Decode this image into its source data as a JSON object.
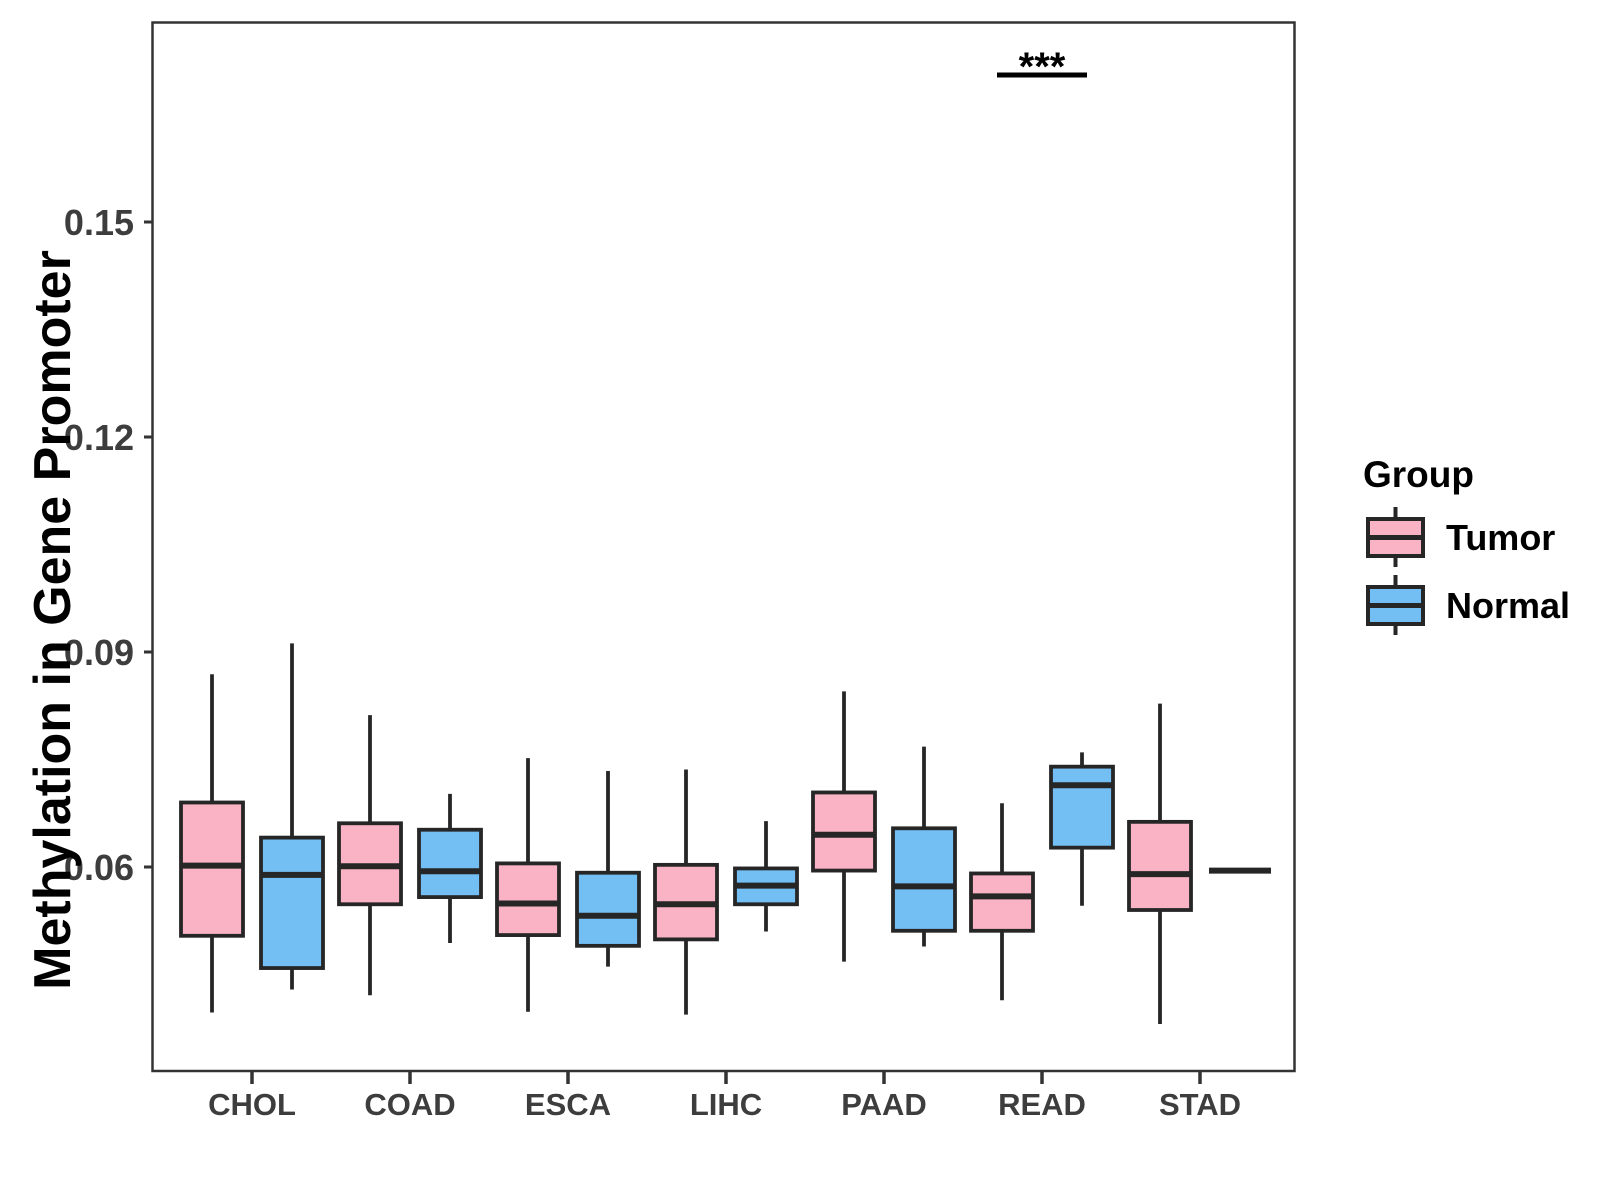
{
  "figure": {
    "background": "#ffffff"
  },
  "chart_data": {
    "type": "boxplot",
    "title": "",
    "xlabel": "",
    "ylabel": "Methylation in Gene Promoter",
    "categories": [
      "CHOL",
      "COAD",
      "ESCA",
      "LIHC",
      "PAAD",
      "READ",
      "STAD"
    ],
    "yticks": [
      0.06,
      0.09,
      0.12,
      0.15
    ],
    "ytick_labels": [
      "0.06",
      "0.09",
      "0.12",
      "0.15"
    ],
    "ylim": [
      0.0315,
      0.178
    ],
    "grid": "off",
    "panel_border": "#333333",
    "box_outline_color": "#262626",
    "legend": {
      "title": "Group",
      "position": "right",
      "entries": [
        {
          "label": "Tumor",
          "color": "#F9B3C4"
        },
        {
          "label": "Normal",
          "color": "#73BFF4"
        }
      ]
    },
    "series": [
      {
        "name": "Tumor",
        "color": "#F9B3C4",
        "boxes": [
          {
            "category": "CHOL",
            "low": 0.0397,
            "q1": 0.0504,
            "median": 0.0602,
            "q3": 0.069,
            "high": 0.0869
          },
          {
            "category": "COAD",
            "low": 0.0421,
            "q1": 0.0548,
            "median": 0.0601,
            "q3": 0.0661,
            "high": 0.0812
          },
          {
            "category": "ESCA",
            "low": 0.0398,
            "q1": 0.0505,
            "median": 0.0549,
            "q3": 0.0605,
            "high": 0.0752
          },
          {
            "category": "LIHC",
            "low": 0.0394,
            "q1": 0.0499,
            "median": 0.0548,
            "q3": 0.0603,
            "high": 0.0736
          },
          {
            "category": "PAAD",
            "low": 0.0468,
            "q1": 0.0595,
            "median": 0.0645,
            "q3": 0.0704,
            "high": 0.0845
          },
          {
            "category": "READ",
            "low": 0.0414,
            "q1": 0.0511,
            "median": 0.0559,
            "q3": 0.0591,
            "high": 0.0689
          },
          {
            "category": "STAD",
            "low": 0.0381,
            "q1": 0.054,
            "median": 0.059,
            "q3": 0.0663,
            "high": 0.0828
          }
        ]
      },
      {
        "name": "Normal",
        "color": "#73BFF4",
        "boxes": [
          {
            "category": "CHOL",
            "low": 0.0429,
            "q1": 0.0459,
            "median": 0.0589,
            "q3": 0.0641,
            "high": 0.0912
          },
          {
            "category": "COAD",
            "low": 0.0494,
            "q1": 0.0558,
            "median": 0.0594,
            "q3": 0.0652,
            "high": 0.0702
          },
          {
            "category": "ESCA",
            "low": 0.0461,
            "q1": 0.049,
            "median": 0.0532,
            "q3": 0.0592,
            "high": 0.0734
          },
          {
            "category": "LIHC",
            "low": 0.051,
            "q1": 0.0548,
            "median": 0.0574,
            "q3": 0.0598,
            "high": 0.0664
          },
          {
            "category": "PAAD",
            "low": 0.0489,
            "q1": 0.0511,
            "median": 0.0573,
            "q3": 0.0654,
            "high": 0.0768
          },
          {
            "category": "READ",
            "low": 0.0546,
            "q1": 0.0627,
            "median": 0.0714,
            "q3": 0.074,
            "high": 0.076
          },
          {
            "category": "STAD",
            "low": 0.0595,
            "q1": 0.0595,
            "median": 0.0595,
            "q3": 0.0595,
            "high": 0.0595
          }
        ]
      }
    ],
    "annotations": [
      {
        "text": "***",
        "category": "READ"
      }
    ]
  }
}
